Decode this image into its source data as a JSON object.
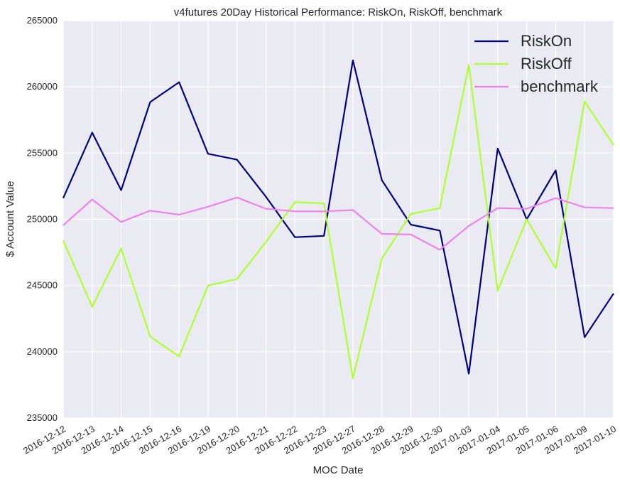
{
  "chart_data": {
    "type": "line",
    "title": "v4futures 20Day Historical Performance: RiskOn, RiskOff, benchmark",
    "xlabel": "MOC Date",
    "ylabel": "$ Account Value",
    "ylim": [
      235000,
      265000
    ],
    "yticks": [
      235000,
      240000,
      245000,
      250000,
      255000,
      260000,
      265000
    ],
    "yticklabels": [
      "235000",
      "240000",
      "245000",
      "250000",
      "255000",
      "260000",
      "265000"
    ],
    "categories": [
      "2016-12-12",
      "2016-12-13",
      "2016-12-14",
      "2016-12-15",
      "2016-12-16",
      "2016-12-19",
      "2016-12-20",
      "2016-12-21",
      "2016-12-22",
      "2016-12-23",
      "2016-12-27",
      "2016-12-28",
      "2016-12-29",
      "2016-12-30",
      "2017-01-03",
      "2017-01-04",
      "2017-01-05",
      "2017-01-06",
      "2017-01-09",
      "2017-01-10"
    ],
    "grid": true,
    "background": "#EAEAF2",
    "legend_position": "top-right",
    "series": [
      {
        "name": "RiskOn",
        "color": "#000080",
        "values": [
          251600,
          256550,
          252200,
          258850,
          260350,
          254950,
          254500,
          251700,
          248650,
          248750,
          262000,
          252950,
          249600,
          249150,
          238350,
          255350,
          250000,
          253700,
          241100,
          244400
        ]
      },
      {
        "name": "RiskOff",
        "color": "#ADFF2F",
        "values": [
          248400,
          243400,
          247800,
          241150,
          239650,
          245000,
          245500,
          248300,
          251300,
          251200,
          238000,
          247050,
          250400,
          250850,
          261650,
          244600,
          250000,
          246300,
          258900,
          255600
        ]
      },
      {
        "name": "benchmark",
        "color": "#EE82EE",
        "values": [
          249550,
          251500,
          249800,
          250650,
          250350,
          250950,
          251650,
          250800,
          250600,
          250600,
          250700,
          248900,
          248850,
          247700,
          249500,
          250850,
          250800,
          251600,
          250900,
          250850
        ]
      }
    ]
  }
}
